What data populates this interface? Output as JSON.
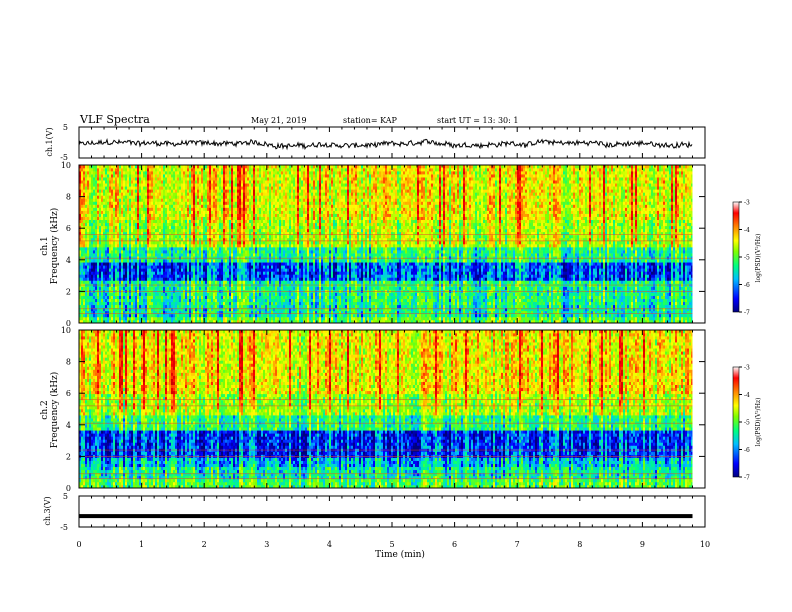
{
  "header": {
    "title": "VLF Spectra",
    "date": "May 21, 2019",
    "station": "station= KAP",
    "start": "start  UT =   13: 30: 1"
  },
  "chart_data": [
    {
      "type": "line",
      "panel": "ch1-waveform",
      "ylabel": "ch.1(V)",
      "ylim": [
        -5,
        5
      ],
      "y_tick_labels": [
        "5",
        "-5"
      ],
      "xlim": [
        0,
        10
      ],
      "note_series": "noisy waveform between about -2 and +1 V"
    },
    {
      "type": "heatmap",
      "panel": "ch1-spectrogram",
      "ylabel_line1": "ch.1",
      "ylabel_line2": "Frequency (kHz)",
      "ylim": [
        0,
        10
      ],
      "y_tick_labels": [
        "0",
        "2",
        "4",
        "6",
        "8",
        "10"
      ],
      "xlim": [
        0,
        9.8
      ],
      "colorbar": {
        "label": "log(PSD)(V²/Hz)",
        "range": [
          -7,
          -3
        ],
        "tick_labels": [
          "-3",
          "-4",
          "-5",
          "-6",
          "-7"
        ]
      }
    },
    {
      "type": "heatmap",
      "panel": "ch2-spectrogram",
      "ylabel_line1": "ch.2",
      "ylabel_line2": "Frequency (kHz)",
      "ylim": [
        0,
        10
      ],
      "y_tick_labels": [
        "0",
        "2",
        "4",
        "6",
        "8",
        "10"
      ],
      "xlim": [
        0,
        9.8
      ],
      "colorbar": {
        "label": "log(PSD)(V²/Hz)",
        "range": [
          -7,
          -3
        ],
        "tick_labels": [
          "-3",
          "-4",
          "-5",
          "-6",
          "-7"
        ]
      }
    },
    {
      "type": "line",
      "panel": "ch3-waveform",
      "ylabel": "ch.3(V)",
      "ylim": [
        -5,
        5
      ],
      "y_tick_labels": [
        "5",
        "-5"
      ],
      "constant_value": -1.5,
      "xlim": [
        0,
        9.8
      ]
    }
  ],
  "xaxis": {
    "label": "Time (min)",
    "range": [
      0,
      10
    ],
    "tick_labels": [
      "0",
      "1",
      "2",
      "3",
      "4",
      "5",
      "6",
      "7",
      "8",
      "9",
      "10"
    ]
  },
  "colors": {
    "colormap": [
      "#00007f",
      "#0000ff",
      "#00bfff",
      "#00ff80",
      "#80ff00",
      "#ffff00",
      "#ff8000",
      "#ff0000",
      "#c80000"
    ]
  }
}
